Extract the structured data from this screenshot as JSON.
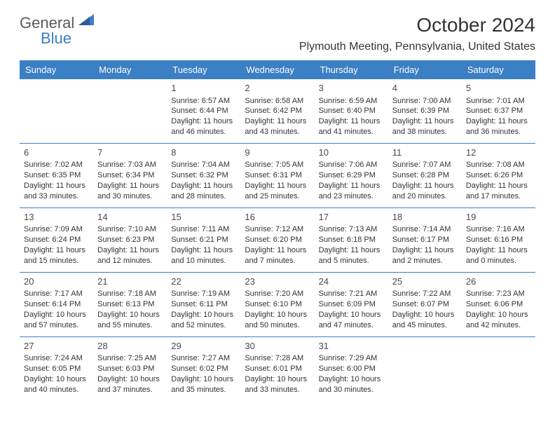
{
  "brand": {
    "part1": "General",
    "part2": "Blue"
  },
  "title": "October 2024",
  "subtitle": "Plymouth Meeting, Pennsylvania, United States",
  "colors": {
    "header_bg": "#3b7fc4",
    "header_text": "#ffffff",
    "border": "#3b7fc4",
    "text": "#333333",
    "brand_gray": "#5a5a5a",
    "brand_blue": "#3b7fc4",
    "background": "#ffffff"
  },
  "day_headers": [
    "Sunday",
    "Monday",
    "Tuesday",
    "Wednesday",
    "Thursday",
    "Friday",
    "Saturday"
  ],
  "weeks": [
    [
      null,
      null,
      {
        "d": "1",
        "sr": "6:57 AM",
        "ss": "6:44 PM",
        "dl": "11 hours and 46 minutes."
      },
      {
        "d": "2",
        "sr": "6:58 AM",
        "ss": "6:42 PM",
        "dl": "11 hours and 43 minutes."
      },
      {
        "d": "3",
        "sr": "6:59 AM",
        "ss": "6:40 PM",
        "dl": "11 hours and 41 minutes."
      },
      {
        "d": "4",
        "sr": "7:00 AM",
        "ss": "6:39 PM",
        "dl": "11 hours and 38 minutes."
      },
      {
        "d": "5",
        "sr": "7:01 AM",
        "ss": "6:37 PM",
        "dl": "11 hours and 36 minutes."
      }
    ],
    [
      {
        "d": "6",
        "sr": "7:02 AM",
        "ss": "6:35 PM",
        "dl": "11 hours and 33 minutes."
      },
      {
        "d": "7",
        "sr": "7:03 AM",
        "ss": "6:34 PM",
        "dl": "11 hours and 30 minutes."
      },
      {
        "d": "8",
        "sr": "7:04 AM",
        "ss": "6:32 PM",
        "dl": "11 hours and 28 minutes."
      },
      {
        "d": "9",
        "sr": "7:05 AM",
        "ss": "6:31 PM",
        "dl": "11 hours and 25 minutes."
      },
      {
        "d": "10",
        "sr": "7:06 AM",
        "ss": "6:29 PM",
        "dl": "11 hours and 23 minutes."
      },
      {
        "d": "11",
        "sr": "7:07 AM",
        "ss": "6:28 PM",
        "dl": "11 hours and 20 minutes."
      },
      {
        "d": "12",
        "sr": "7:08 AM",
        "ss": "6:26 PM",
        "dl": "11 hours and 17 minutes."
      }
    ],
    [
      {
        "d": "13",
        "sr": "7:09 AM",
        "ss": "6:24 PM",
        "dl": "11 hours and 15 minutes."
      },
      {
        "d": "14",
        "sr": "7:10 AM",
        "ss": "6:23 PM",
        "dl": "11 hours and 12 minutes."
      },
      {
        "d": "15",
        "sr": "7:11 AM",
        "ss": "6:21 PM",
        "dl": "11 hours and 10 minutes."
      },
      {
        "d": "16",
        "sr": "7:12 AM",
        "ss": "6:20 PM",
        "dl": "11 hours and 7 minutes."
      },
      {
        "d": "17",
        "sr": "7:13 AM",
        "ss": "6:18 PM",
        "dl": "11 hours and 5 minutes."
      },
      {
        "d": "18",
        "sr": "7:14 AM",
        "ss": "6:17 PM",
        "dl": "11 hours and 2 minutes."
      },
      {
        "d": "19",
        "sr": "7:16 AM",
        "ss": "6:16 PM",
        "dl": "11 hours and 0 minutes."
      }
    ],
    [
      {
        "d": "20",
        "sr": "7:17 AM",
        "ss": "6:14 PM",
        "dl": "10 hours and 57 minutes."
      },
      {
        "d": "21",
        "sr": "7:18 AM",
        "ss": "6:13 PM",
        "dl": "10 hours and 55 minutes."
      },
      {
        "d": "22",
        "sr": "7:19 AM",
        "ss": "6:11 PM",
        "dl": "10 hours and 52 minutes."
      },
      {
        "d": "23",
        "sr": "7:20 AM",
        "ss": "6:10 PM",
        "dl": "10 hours and 50 minutes."
      },
      {
        "d": "24",
        "sr": "7:21 AM",
        "ss": "6:09 PM",
        "dl": "10 hours and 47 minutes."
      },
      {
        "d": "25",
        "sr": "7:22 AM",
        "ss": "6:07 PM",
        "dl": "10 hours and 45 minutes."
      },
      {
        "d": "26",
        "sr": "7:23 AM",
        "ss": "6:06 PM",
        "dl": "10 hours and 42 minutes."
      }
    ],
    [
      {
        "d": "27",
        "sr": "7:24 AM",
        "ss": "6:05 PM",
        "dl": "10 hours and 40 minutes."
      },
      {
        "d": "28",
        "sr": "7:25 AM",
        "ss": "6:03 PM",
        "dl": "10 hours and 37 minutes."
      },
      {
        "d": "29",
        "sr": "7:27 AM",
        "ss": "6:02 PM",
        "dl": "10 hours and 35 minutes."
      },
      {
        "d": "30",
        "sr": "7:28 AM",
        "ss": "6:01 PM",
        "dl": "10 hours and 33 minutes."
      },
      {
        "d": "31",
        "sr": "7:29 AM",
        "ss": "6:00 PM",
        "dl": "10 hours and 30 minutes."
      },
      null,
      null
    ]
  ],
  "labels": {
    "sunrise": "Sunrise: ",
    "sunset": "Sunset: ",
    "daylight": "Daylight: "
  }
}
